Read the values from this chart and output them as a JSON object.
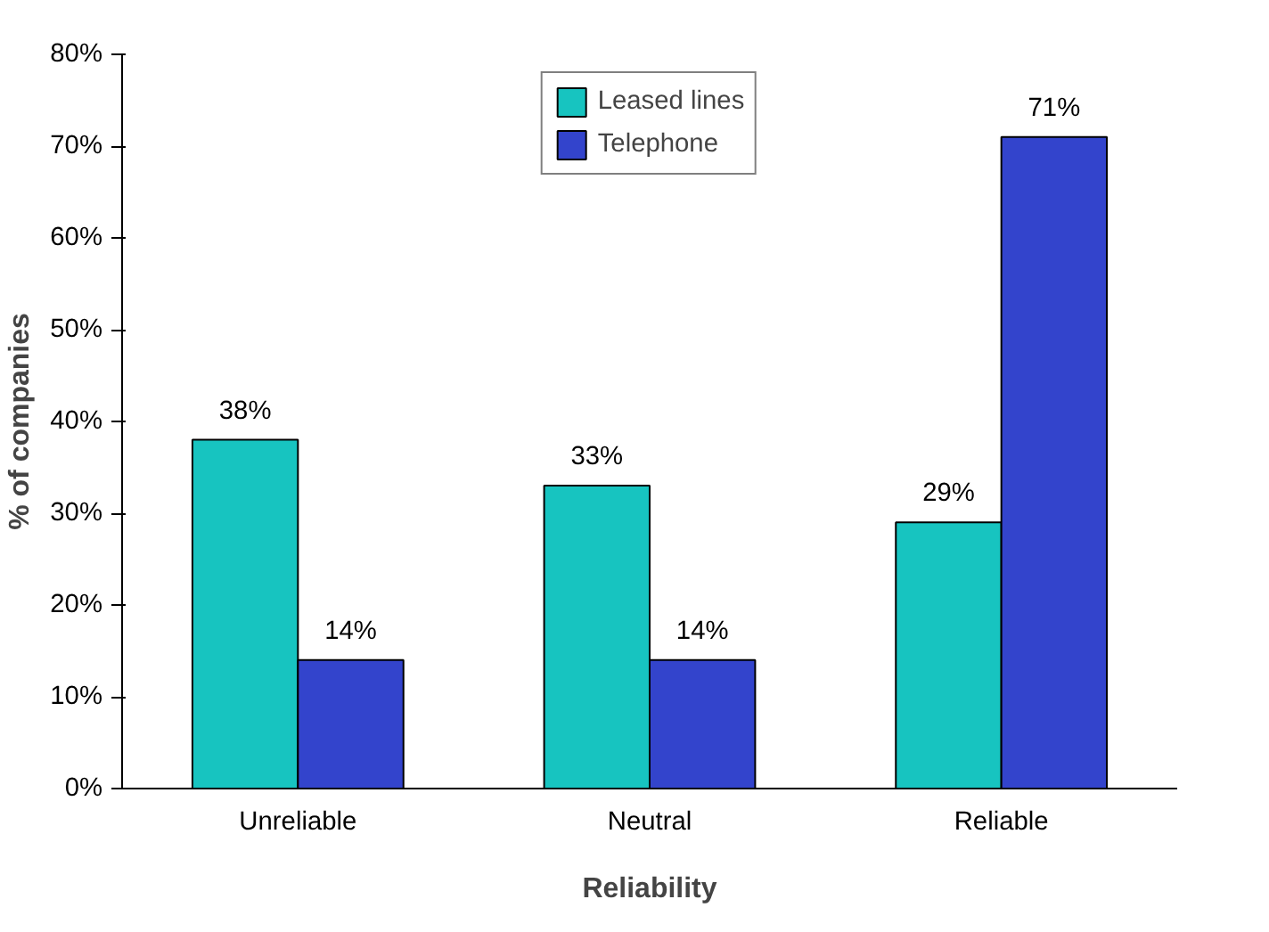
{
  "chart_data": {
    "type": "bar",
    "xlabel": "Reliability",
    "ylabel": "% of companies",
    "categories": [
      "Unreliable",
      "Neutral",
      "Reliable"
    ],
    "series": [
      {
        "name": "Leased lines",
        "color": "#17c4c0",
        "values": [
          38,
          33,
          29
        ],
        "value_labels": [
          "38%",
          "33%",
          "29%"
        ]
      },
      {
        "name": "Telephone",
        "color": "#3344cc",
        "values": [
          14,
          14,
          71
        ],
        "value_labels": [
          "14%",
          "14%",
          "71%"
        ]
      }
    ],
    "ylim": [
      0,
      80
    ],
    "yticks": [
      {
        "value": 0,
        "label": "0%"
      },
      {
        "value": 10,
        "label": "10%"
      },
      {
        "value": 20,
        "label": "20%"
      },
      {
        "value": 30,
        "label": "30%"
      },
      {
        "value": 40,
        "label": "40%"
      },
      {
        "value": 50,
        "label": "50%"
      },
      {
        "value": 60,
        "label": "60%"
      },
      {
        "value": 70,
        "label": "70%"
      },
      {
        "value": 80,
        "label": "80%"
      }
    ],
    "grid": false,
    "legend": "top"
  }
}
